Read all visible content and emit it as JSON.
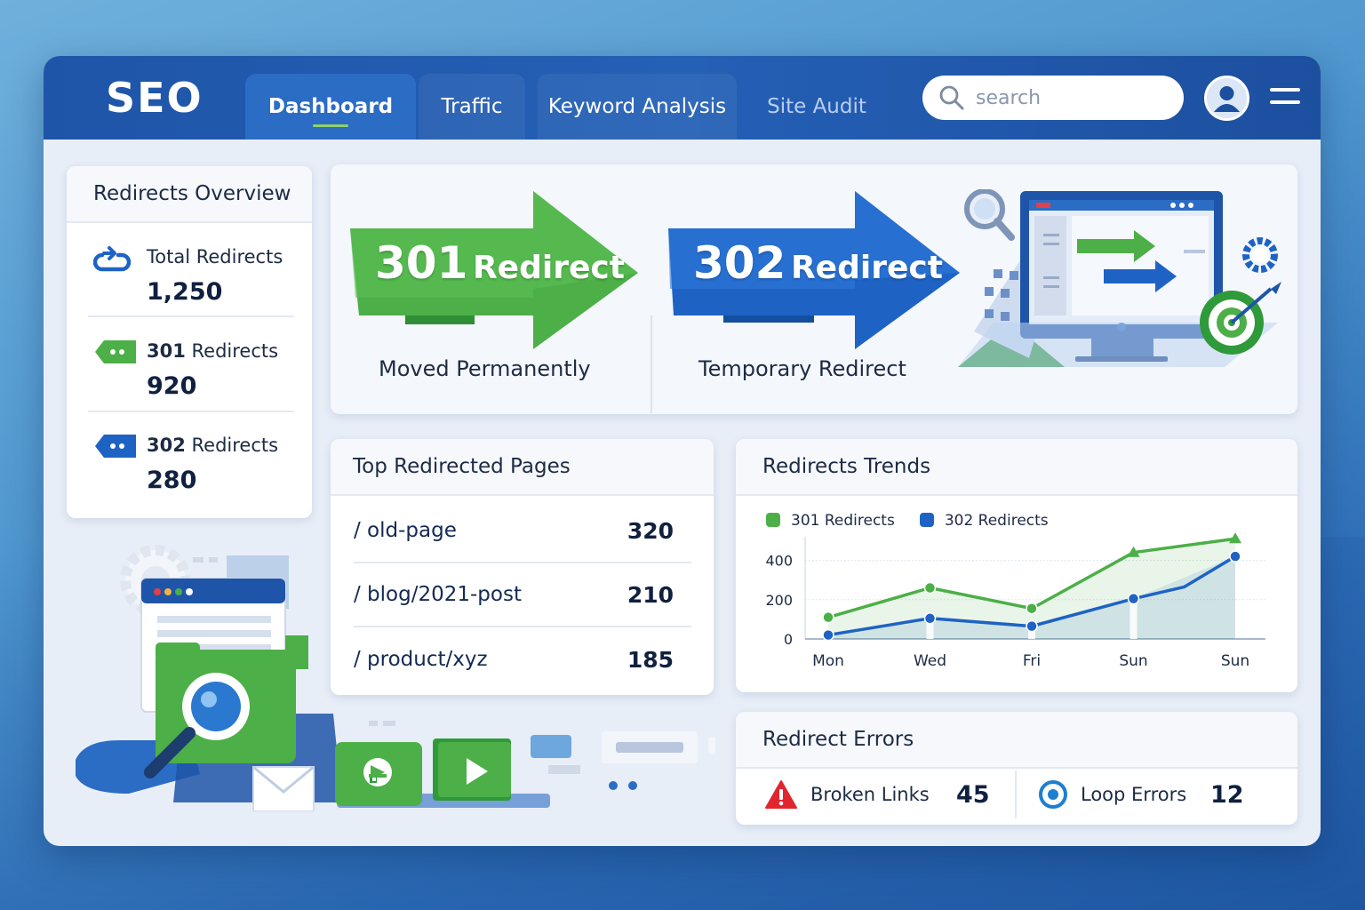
{
  "app": {
    "logo": "SEO"
  },
  "nav": {
    "tabs": [
      {
        "label": "Dashboard",
        "active": true
      },
      {
        "label": "Traffic"
      },
      {
        "label": "Keyword Analysis"
      },
      {
        "label": "Site Audit"
      }
    ]
  },
  "search": {
    "placeholder": "search"
  },
  "overview": {
    "title": "Redirects Overview",
    "items": [
      {
        "label": "Total Redirects",
        "value": "1,250",
        "icon": "link-icon"
      },
      {
        "label_num": "301",
        "label_rest": " Redirects",
        "value": "920",
        "icon": "tag-icon"
      },
      {
        "label_num": "302",
        "label_rest": " Redirects",
        "value": "280",
        "icon": "tag-icon"
      }
    ]
  },
  "hero": {
    "r301": {
      "num": "301",
      "word": "Redirect",
      "caption": "Moved Permanently"
    },
    "r302": {
      "num": "302",
      "word": "Redirect",
      "caption": "Temporary Redirect"
    }
  },
  "top_pages": {
    "title": "Top Redirected Pages",
    "rows": [
      {
        "path": "/ old-page",
        "count": "320"
      },
      {
        "path": "/ blog/2021-post",
        "count": "210"
      },
      {
        "path": "/ product/xyz",
        "count": "185"
      }
    ]
  },
  "trends": {
    "title": "Redirects Trends",
    "chart_data": {
      "type": "line",
      "categories": [
        "Mon",
        "Wed",
        "Fri",
        "Sun",
        "Sun"
      ],
      "yticks": [
        0,
        200,
        400
      ],
      "ylim": [
        0,
        520
      ],
      "grid": true,
      "legend": "top-left",
      "series": [
        {
          "name": "301 Redirects",
          "color": "#4caf47",
          "x": [
            0,
            1,
            2,
            3,
            4
          ],
          "values": [
            110,
            260,
            155,
            440,
            510
          ]
        },
        {
          "name": "302 Redirects",
          "color": "#1e63c4",
          "x": [
            0,
            1,
            2,
            3,
            4
          ],
          "values": [
            20,
            105,
            65,
            205,
            420
          ]
        }
      ],
      "intermediate_302": [
        {
          "x": 3.5,
          "y": 265
        }
      ]
    }
  },
  "errors": {
    "title": "Redirect Errors",
    "broken": {
      "label": "Broken Links",
      "value": "45",
      "icon": "warning-icon",
      "color": "#e0262c"
    },
    "loop": {
      "label": "Loop Errors",
      "value": "12",
      "icon": "loop-icon",
      "color": "#1e7fd0"
    }
  },
  "colors": {
    "green": "#4caf47",
    "blue": "#1e63c4",
    "nav": "#1f55a8"
  }
}
